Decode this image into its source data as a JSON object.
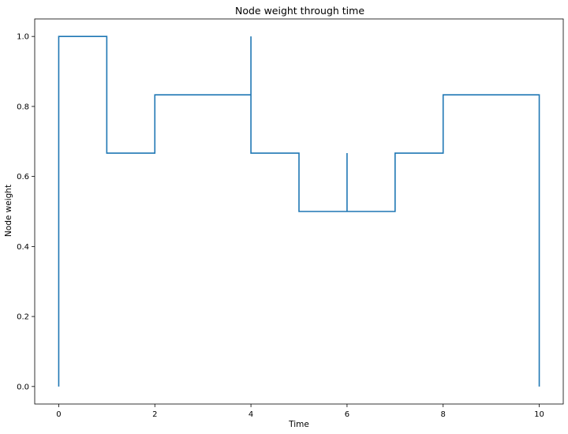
{
  "chart_data": {
    "type": "line",
    "title": "Node weight through time",
    "xlabel": "Time",
    "ylabel": "Node weight",
    "xlim": [
      -0.5,
      10.5
    ],
    "ylim": [
      -0.05,
      1.05
    ],
    "x_ticks": [
      0,
      2,
      4,
      6,
      8,
      10
    ],
    "x_tick_labels": [
      "0",
      "2",
      "4",
      "6",
      "8",
      "10"
    ],
    "y_ticks": [
      0.0,
      0.2,
      0.4,
      0.6,
      0.8,
      1.0
    ],
    "y_tick_labels": [
      "0.0",
      "0.2",
      "0.4",
      "0.6",
      "0.8",
      "1.0"
    ],
    "grid": false,
    "legend": "none",
    "series": [
      {
        "color": "#1f77b4",
        "points": [
          [
            0,
            0.0
          ],
          [
            0,
            1.0
          ],
          [
            1,
            1.0
          ],
          [
            1,
            0.6667
          ],
          [
            2,
            0.6667
          ],
          [
            2,
            0.8333
          ],
          [
            4,
            0.8333
          ],
          [
            4,
            1.0
          ],
          [
            4,
            0.6667
          ],
          [
            5,
            0.6667
          ],
          [
            5,
            0.5
          ],
          [
            6,
            0.5
          ],
          [
            6,
            0.6667
          ],
          [
            6,
            0.5
          ],
          [
            7,
            0.5
          ],
          [
            7,
            0.6667
          ],
          [
            8,
            0.6667
          ],
          [
            8,
            0.8333
          ],
          [
            10,
            0.8333
          ],
          [
            10,
            0.0
          ]
        ]
      }
    ]
  }
}
